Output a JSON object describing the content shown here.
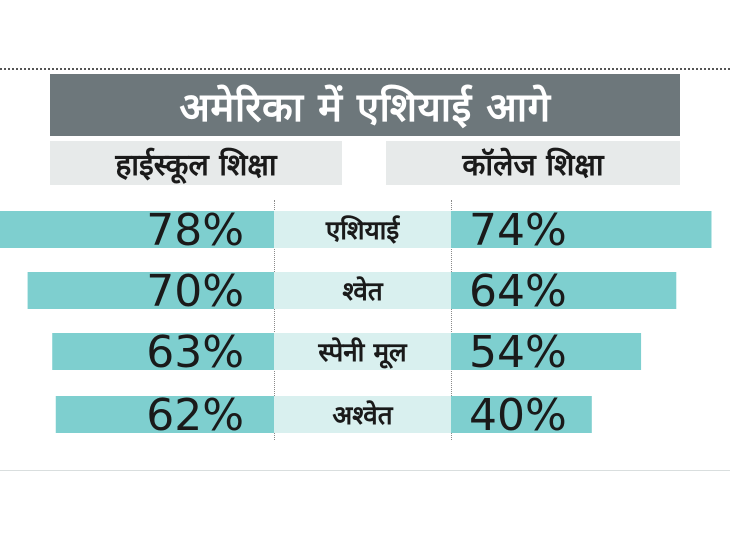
{
  "title": "अमेरिका में एशियाई आगे",
  "headers": {
    "left": "हाईस्कूल शिक्षा",
    "right": "कॉलेज शिक्षा"
  },
  "colors": {
    "bar": "#7ecfcf",
    "label_bg": "#d9f0ef",
    "title_bg": "#6d777b",
    "header_bg": "#e7eaea",
    "text": "#1a1a1a"
  },
  "chart_data": {
    "type": "bar",
    "categories": [
      "एशियाई",
      "श्वेत",
      "स्पेनी मूल",
      "अश्वेत"
    ],
    "series": [
      {
        "name": "हाईस्कूल शिक्षा",
        "values": [
          78,
          70,
          63,
          62
        ],
        "labels": [
          "78%",
          "70%",
          "63%",
          "62%"
        ]
      },
      {
        "name": "कॉलेज शिक्षा",
        "values": [
          74,
          64,
          54,
          40
        ],
        "labels": [
          "74%",
          "64%",
          "54%",
          "40%"
        ]
      }
    ],
    "unit": "%",
    "layout": "butterfly"
  }
}
